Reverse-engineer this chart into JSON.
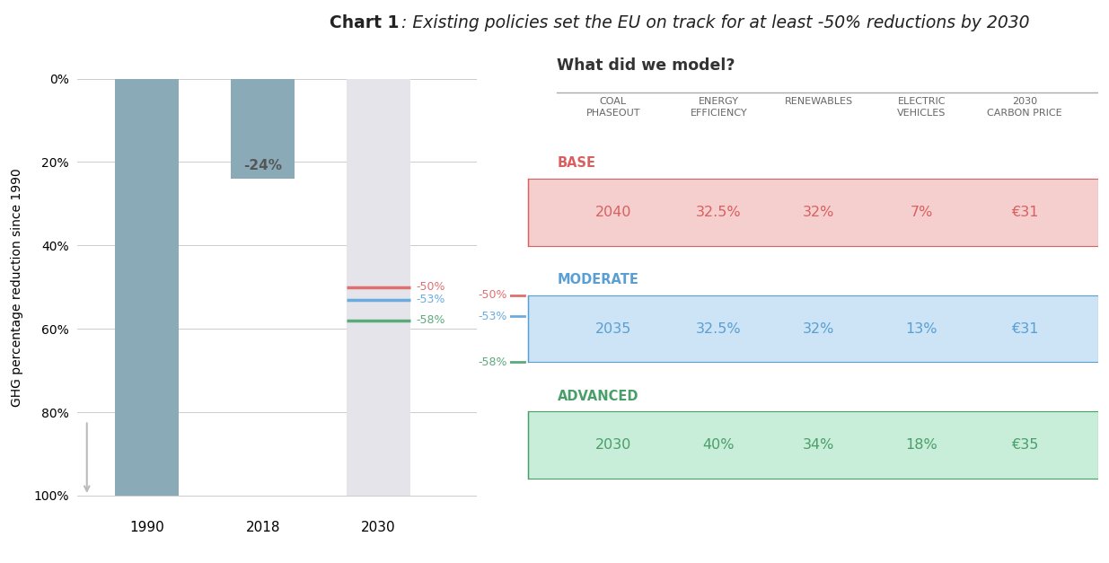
{
  "title_bold": "Chart 1",
  "title_italic": ": Existing policies set the EU on track for at least -50% reductions by 2030",
  "bar_categories": [
    "1990",
    "2018",
    "2030"
  ],
  "bar_color_1990": "#8AAAB8",
  "bar_color_2018": "#8AAAB8",
  "bar_color_2030": "#E4E4EA",
  "ylabel": "GHG percentage reduction since 1990",
  "yticks": [
    0,
    20,
    40,
    60,
    80,
    100
  ],
  "ytick_labels": [
    "0%",
    "20%",
    "40%",
    "60%",
    "80%",
    "100%"
  ],
  "annotation_2018": "-24%",
  "line_base": -50,
  "line_moderate": -53,
  "line_advanced": -58,
  "line_base_color": "#E07070",
  "line_moderate_color": "#6AACE0",
  "line_advanced_color": "#5AAA7A",
  "label_base": "-50%",
  "label_moderate": "-53%",
  "label_advanced": "-58%",
  "table_title": "What did we model?",
  "col_headers": [
    "COAL\nPHASEOUT",
    "ENERGY\nEFFICIENCY",
    "RENEWABLES",
    "ELECTRIC\nVEHICLES",
    "2030\nCARBON PRICE"
  ],
  "scenario_labels": [
    "BASE",
    "MODERATE",
    "ADVANCED"
  ],
  "scenario_colors_bg": [
    "#F5CECE",
    "#CCE4F5",
    "#C8EDD8"
  ],
  "scenario_colors_text": [
    "#D96060",
    "#5A9FD4",
    "#4A9E6A"
  ],
  "scenario_colors_border": [
    "#D96060",
    "#5A9FD4",
    "#4A9E6A"
  ],
  "base_values": [
    "2040",
    "32.5%",
    "32%",
    "7%",
    "€31"
  ],
  "moderate_values": [
    "2035",
    "32.5%",
    "32%",
    "13%",
    "€31"
  ],
  "advanced_values": [
    "2030",
    "40%",
    "34%",
    "18%",
    "€35"
  ],
  "bg_color": "#FFFFFF"
}
